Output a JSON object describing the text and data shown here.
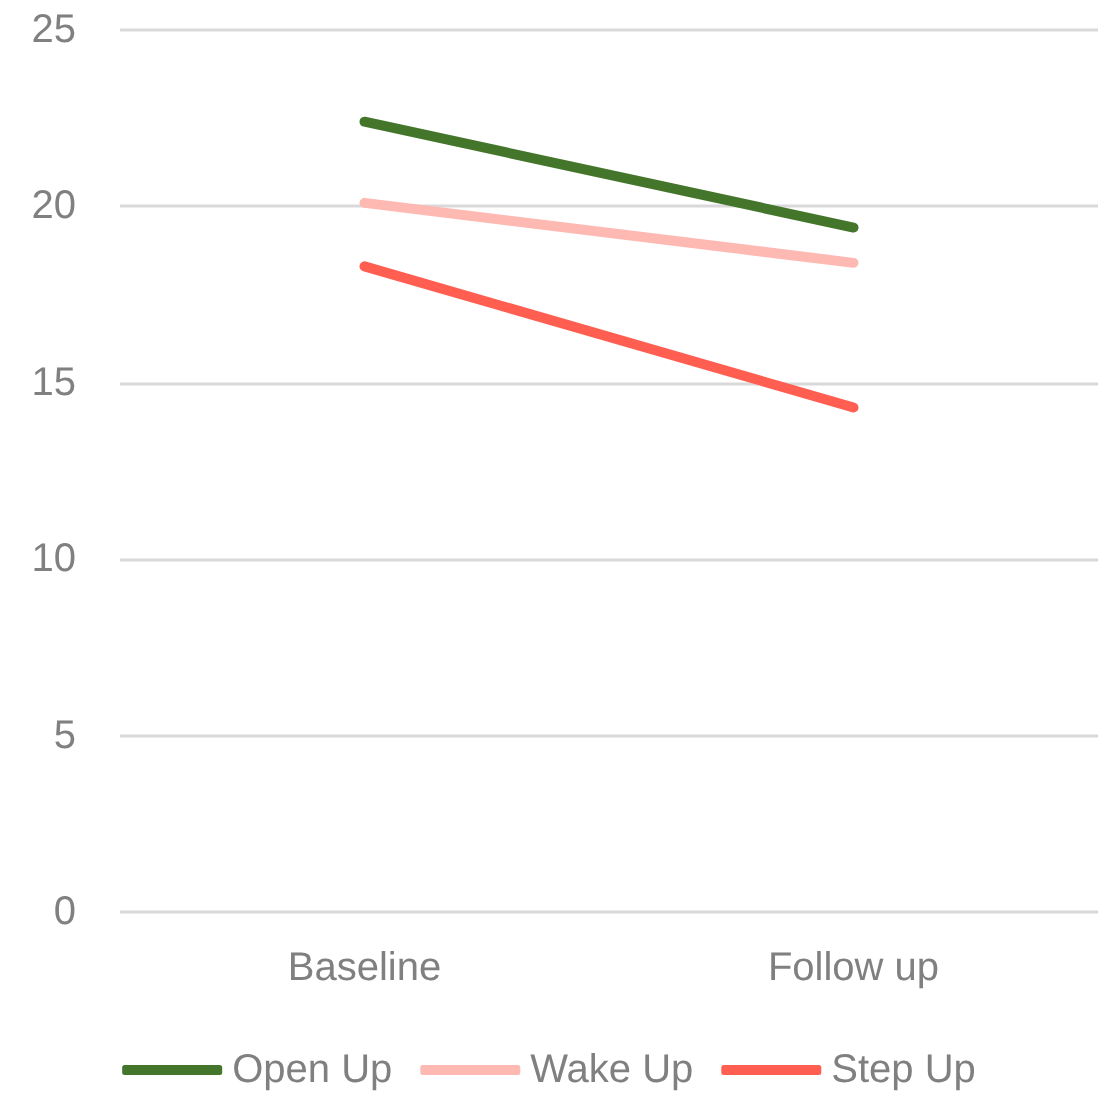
{
  "chart_data": {
    "type": "line",
    "categories": [
      "Baseline",
      "Follow up"
    ],
    "series": [
      {
        "name": "Open Up",
        "color": "#43752a",
        "values": [
          22.4,
          19.4
        ]
      },
      {
        "name": "Wake Up",
        "color": "#ffb9b3",
        "values": [
          20.1,
          18.4
        ]
      },
      {
        "name": "Step Up",
        "color": "#ff5e50",
        "values": [
          18.3,
          14.3
        ]
      }
    ],
    "ylim": [
      0,
      25
    ],
    "yticks": [
      0,
      5,
      10,
      15,
      20,
      25
    ],
    "grid": "y",
    "legend": "bottom",
    "marker": "none",
    "line_style": "solid"
  }
}
